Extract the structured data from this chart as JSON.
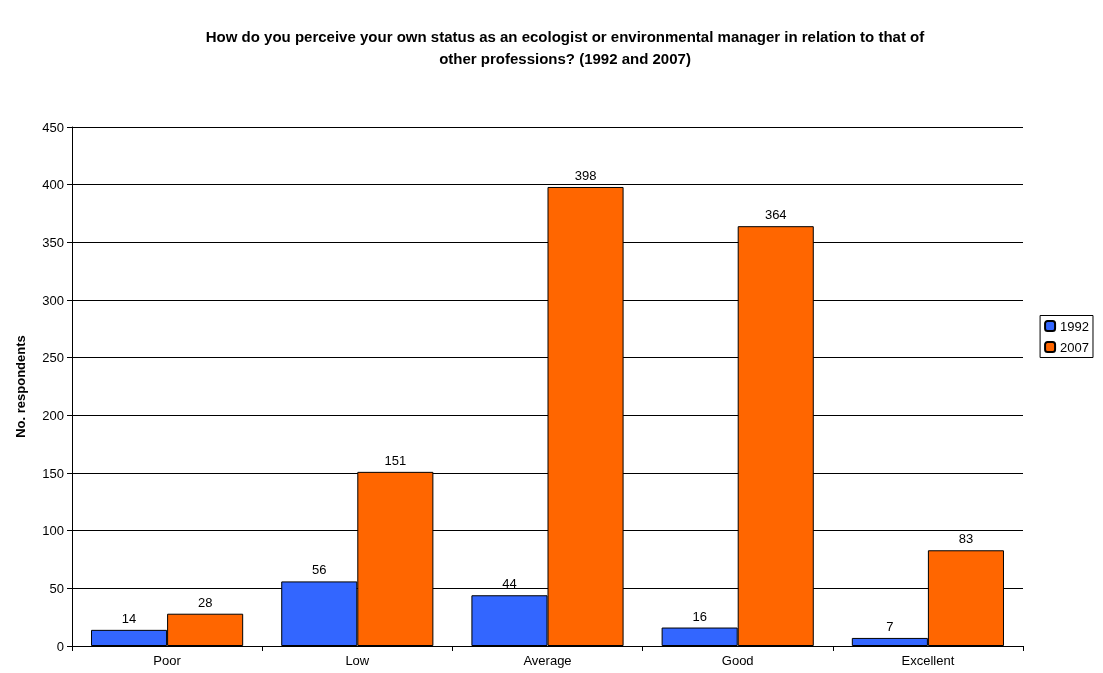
{
  "chart_data": {
    "type": "bar",
    "title": "How do you perceive your own status as an ecologist or environmental manager in relation to that of\nother professions? (1992 and 2007)",
    "ylabel": "No. respondents",
    "categories": [
      "Poor",
      "Low",
      "Average",
      "Good",
      "Excellent"
    ],
    "series": [
      {
        "name": "1992",
        "color": "#3366ff",
        "values": [
          14,
          56,
          44,
          16,
          7
        ]
      },
      {
        "name": "2007",
        "color": "#ff6600",
        "values": [
          28,
          151,
          398,
          364,
          83
        ]
      }
    ],
    "ylim": [
      0,
      450
    ],
    "yticks": [
      0,
      50,
      100,
      150,
      200,
      250,
      300,
      350,
      400,
      450
    ],
    "grid": "y",
    "legend": "right",
    "data_labels": true
  }
}
